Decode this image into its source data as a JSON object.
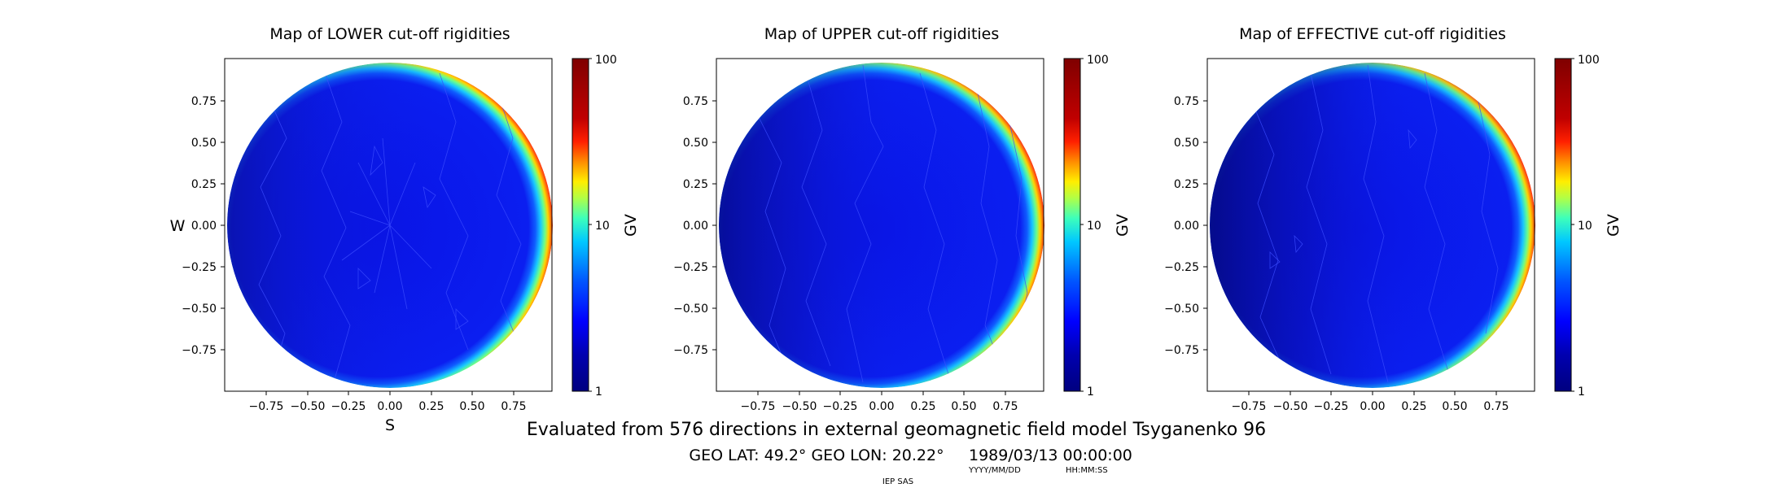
{
  "chart_data": [
    {
      "type": "heatmap",
      "title": "Map of LOWER cut-off rigidities",
      "xlabel": "S",
      "ylabel": "W",
      "xlim": [
        -1,
        1
      ],
      "ylim": [
        -1,
        1
      ],
      "xticks": [
        "−0.75",
        "−0.50",
        "−0.25",
        "0.00",
        "0.25",
        "0.50",
        "0.75"
      ],
      "yticks": [
        "0.75",
        "0.50",
        "0.25",
        "0.00",
        "−0.25",
        "−0.50",
        "−0.75"
      ],
      "colorbar": {
        "label": "GV",
        "scale": "log",
        "range": [
          1,
          100
        ],
        "ticks": [
          "1",
          "10",
          "100"
        ]
      }
    },
    {
      "type": "heatmap",
      "title": "Map of UPPER cut-off rigidities",
      "xlabel": "",
      "ylabel": "",
      "xlim": [
        -1,
        1
      ],
      "ylim": [
        -1,
        1
      ],
      "xticks": [
        "−0.75",
        "−0.50",
        "−0.25",
        "0.00",
        "0.25",
        "0.50",
        "0.75"
      ],
      "yticks": [
        "0.75",
        "0.50",
        "0.25",
        "0.00",
        "−0.25",
        "−0.50",
        "−0.75"
      ],
      "colorbar": {
        "label": "GV",
        "scale": "log",
        "range": [
          1,
          100
        ],
        "ticks": [
          "1",
          "10",
          "100"
        ]
      }
    },
    {
      "type": "heatmap",
      "title": "Map of EFFECTIVE cut-off rigidities",
      "xlabel": "",
      "ylabel": "",
      "xlim": [
        -1,
        1
      ],
      "ylim": [
        -1,
        1
      ],
      "xticks": [
        "−0.75",
        "−0.50",
        "−0.25",
        "0.00",
        "0.25",
        "0.50",
        "0.75"
      ],
      "yticks": [
        "0.75",
        "0.50",
        "0.25",
        "0.00",
        "−0.25",
        "−0.50",
        "−0.75"
      ],
      "colorbar": {
        "label": "GV",
        "scale": "log",
        "range": [
          1,
          100
        ],
        "ticks": [
          "1",
          "10",
          "100"
        ]
      }
    }
  ],
  "footer": {
    "main": "Evaluated from 576 directions in external geomagnetic field model Tsyganenko 96",
    "geo": "GEO LAT: 49.2°  GEO LON: 20.22°",
    "datetime": "1989/03/13 00:00:00",
    "date_format": "YYYY/MM/DD",
    "time_format": "HH:MM:SS",
    "institution": "IEP SAS"
  },
  "colors": {
    "jet": [
      "#00007f",
      "#0000ff",
      "#007fff",
      "#00ffff",
      "#7fff7f",
      "#ffff00",
      "#ff7f00",
      "#ff0000",
      "#7f0000"
    ]
  }
}
